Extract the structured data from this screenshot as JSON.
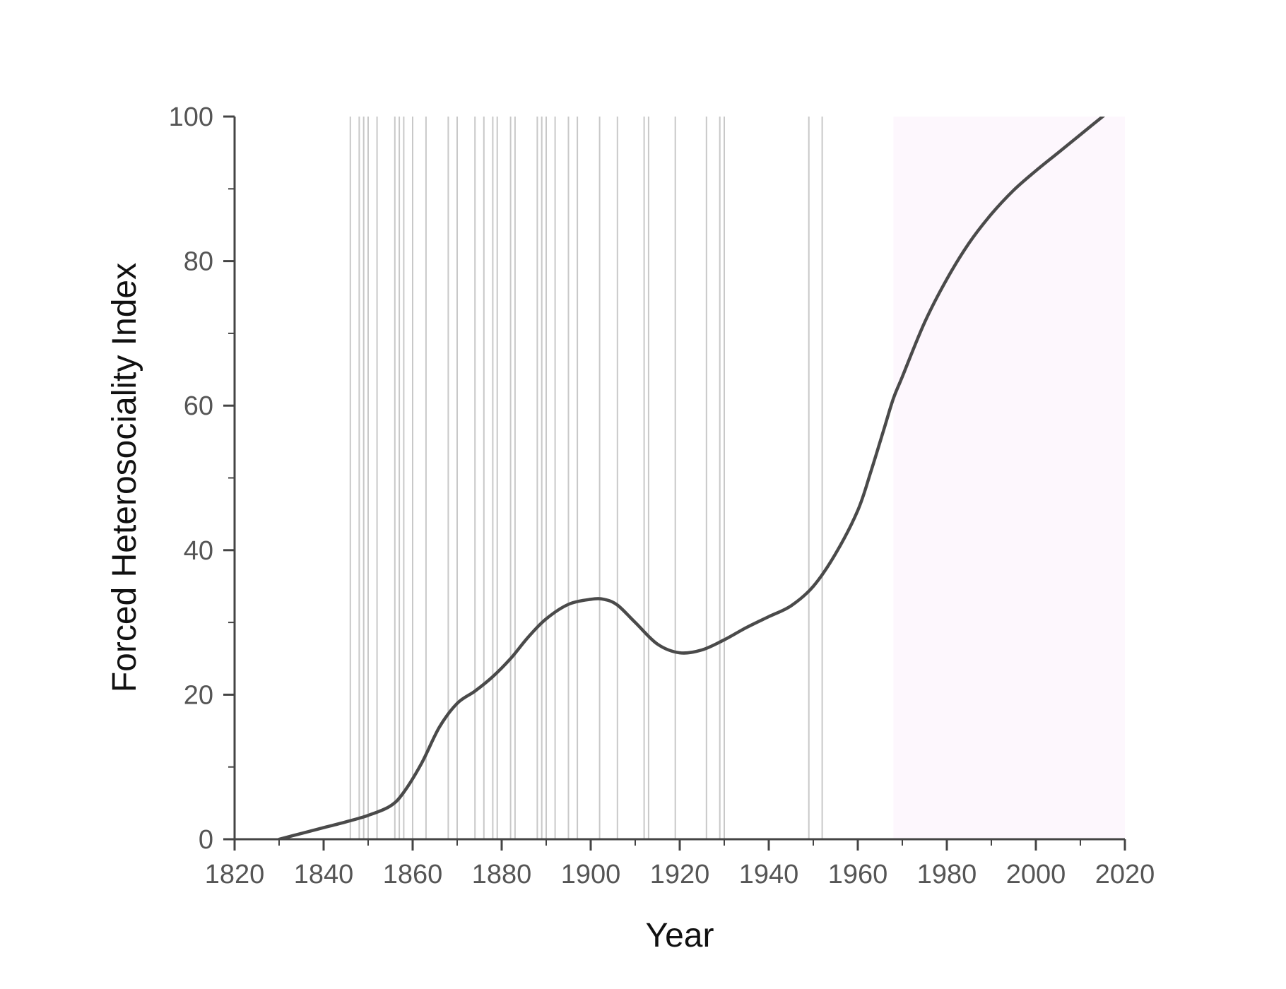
{
  "chart_data": {
    "type": "line",
    "title": "",
    "xlabel": "Year",
    "ylabel": "Forced Heterosociality Index",
    "xlim": [
      1820,
      2020
    ],
    "ylim": [
      0,
      100
    ],
    "x_ticks": [
      1820,
      1840,
      1860,
      1880,
      1900,
      1920,
      1940,
      1960,
      1980,
      2000,
      2020
    ],
    "y_ticks": [
      0,
      20,
      40,
      60,
      80,
      100
    ],
    "grid": false,
    "legend": "none",
    "shaded_region": {
      "x_start": 1968,
      "x_end": 2022,
      "color": "#fdf7fd"
    },
    "event_lines": {
      "color": "#c8c8c8",
      "years": [
        1846,
        1848,
        1849,
        1850,
        1852,
        1856,
        1857,
        1858,
        1860,
        1863,
        1868,
        1870,
        1874,
        1876,
        1878,
        1879,
        1882,
        1883,
        1888,
        1889,
        1890,
        1892,
        1895,
        1897,
        1902,
        1906,
        1912,
        1913,
        1919,
        1926,
        1929,
        1930,
        1949,
        1952
      ]
    },
    "series": [
      {
        "color": "#4a4a4a",
        "x": [
          1830,
          1835,
          1840,
          1845,
          1850,
          1855,
          1858,
          1862,
          1866,
          1870,
          1874,
          1878,
          1882,
          1886,
          1890,
          1895,
          1900,
          1903,
          1906,
          1910,
          1915,
          1920,
          1925,
          1930,
          1935,
          1940,
          1945,
          1950,
          1955,
          1960,
          1963,
          1966,
          1968,
          1970,
          1975,
          1980,
          1985,
          1990,
          1995,
          2000,
          2005,
          2010,
          2015,
          2020
        ],
        "y": [
          0,
          0.8,
          1.6,
          2.4,
          3.3,
          4.6,
          6.5,
          10.5,
          15.5,
          18.8,
          20.5,
          22.5,
          25,
          28,
          30.5,
          32.5,
          33.2,
          33.2,
          32.4,
          30,
          27,
          25.8,
          26.2,
          27.6,
          29.3,
          30.8,
          32.3,
          35,
          39.5,
          45.5,
          51,
          57,
          61,
          64,
          71.5,
          77.5,
          82.5,
          86.5,
          89.8,
          92.5,
          95,
          97.5,
          100,
          102.5
        ]
      }
    ]
  }
}
